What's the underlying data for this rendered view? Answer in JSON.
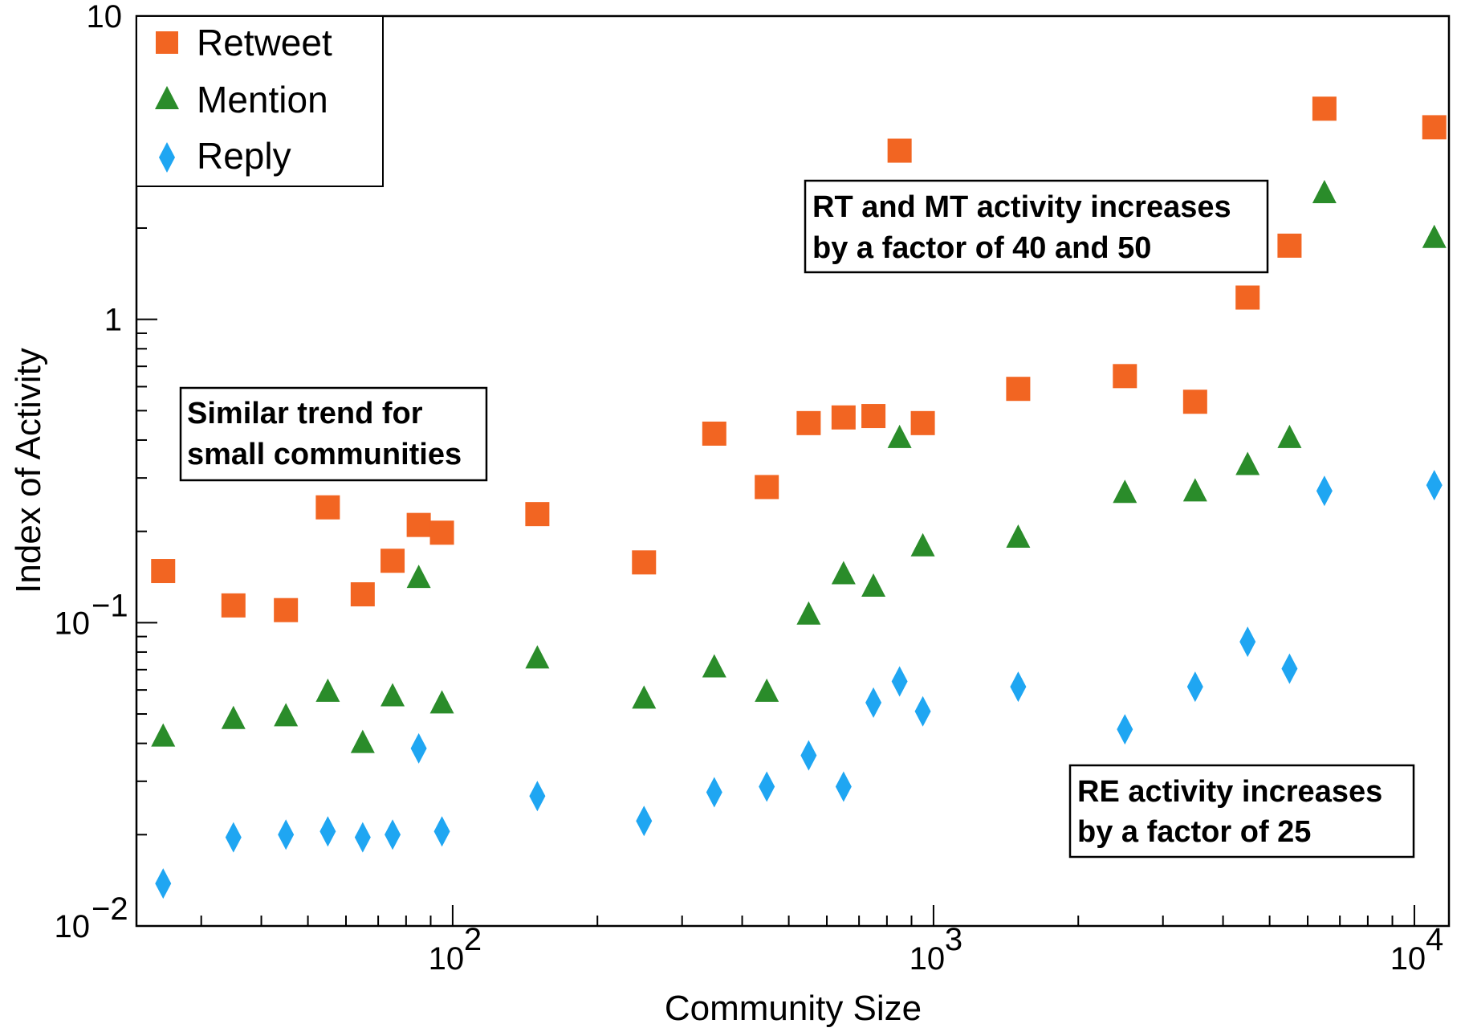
{
  "chart_data": {
    "type": "scatter",
    "xlabel": "Community Size",
    "ylabel": "Index of Activity",
    "xscale": "log",
    "yscale": "log",
    "xlim": [
      22,
      11800
    ],
    "ylim": [
      0.01,
      10
    ],
    "grid": false,
    "legend_position": "top-left",
    "x_tick_labels": [
      {
        "value": 100,
        "base": "10",
        "exp": "2"
      },
      {
        "value": 1000,
        "base": "10",
        "exp": "3"
      },
      {
        "value": 10000,
        "base": "10",
        "exp": "4"
      }
    ],
    "y_tick_labels": [
      {
        "value": 0.01,
        "base": "10",
        "exp": "−2"
      },
      {
        "value": 0.1,
        "base": "10",
        "exp": "−1"
      },
      {
        "value": 1,
        "base": "1",
        "exp": ""
      },
      {
        "value": 10,
        "base": "10",
        "exp": ""
      }
    ],
    "series": [
      {
        "name": "Retweet",
        "marker": "square",
        "color": "#F26522",
        "x": [
          25,
          35,
          45,
          55,
          65,
          75,
          85,
          95,
          150,
          250,
          350,
          450,
          550,
          650,
          750,
          850,
          950,
          1500,
          2500,
          3500,
          4500,
          5500,
          6500,
          11000
        ],
        "y": [
          0.148,
          0.114,
          0.11,
          0.24,
          0.124,
          0.16,
          0.21,
          0.198,
          0.228,
          0.158,
          0.42,
          0.28,
          0.455,
          0.475,
          0.48,
          3.6,
          0.455,
          0.59,
          0.65,
          0.535,
          1.18,
          1.75,
          4.95,
          4.3
        ]
      },
      {
        "name": "Mention",
        "marker": "triangle",
        "color": "#2A8C2A",
        "x": [
          25,
          35,
          45,
          55,
          65,
          75,
          85,
          95,
          150,
          250,
          350,
          450,
          550,
          650,
          750,
          850,
          950,
          1500,
          2500,
          3500,
          4500,
          5500,
          6500,
          11000
        ],
        "y": [
          0.042,
          0.048,
          0.049,
          0.059,
          0.04,
          0.057,
          0.14,
          0.054,
          0.076,
          0.056,
          0.071,
          0.059,
          0.106,
          0.144,
          0.131,
          0.405,
          0.178,
          0.19,
          0.267,
          0.27,
          0.33,
          0.405,
          2.6,
          1.85
        ]
      },
      {
        "name": "Reply",
        "marker": "diamond",
        "color": "#1FA6F2",
        "x": [
          25,
          35,
          45,
          55,
          65,
          75,
          85,
          95,
          150,
          250,
          350,
          450,
          550,
          650,
          750,
          850,
          950,
          1500,
          2500,
          3500,
          4500,
          5500,
          6500,
          11000
        ],
        "y": [
          0.0138,
          0.0196,
          0.02,
          0.0205,
          0.0196,
          0.02,
          0.0385,
          0.0205,
          0.0268,
          0.0222,
          0.0276,
          0.0288,
          0.0365,
          0.0288,
          0.0545,
          0.064,
          0.051,
          0.0615,
          0.0445,
          0.0615,
          0.0865,
          0.0705,
          0.272,
          0.284
        ]
      }
    ],
    "annotations": [
      {
        "id": "small",
        "lines": [
          "Similar trend for",
          "small communities"
        ]
      },
      {
        "id": "rtmt",
        "lines": [
          "RT and MT activity increases",
          "by a factor of 40 and 50"
        ]
      },
      {
        "id": "re",
        "lines": [
          "RE activity increases",
          "by a factor of 25"
        ]
      }
    ]
  }
}
